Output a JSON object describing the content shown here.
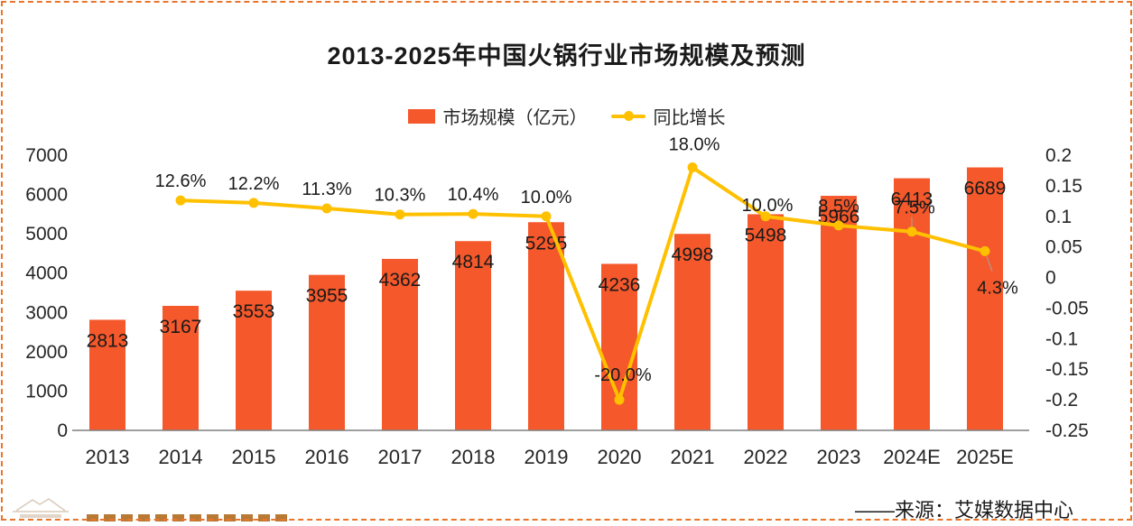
{
  "title": "2013-2025年中国火锅行业市场规模及预测",
  "legend": {
    "items": [
      {
        "label": "市场规模（亿元）",
        "marker": "bar-swatch"
      },
      {
        "label": "同比增长",
        "marker": "line-marker"
      }
    ]
  },
  "source": "——来源：艾媒数据中心",
  "colors": {
    "bar": "#F4582B",
    "line": "#FFC000",
    "text": "#262626",
    "axis": "#7F7F7F",
    "leader": "#A6A6A6",
    "border": "#E8752B"
  },
  "chart_data": {
    "type": "bar",
    "title": "2013-2025年中国火锅行业市场规模及预测",
    "categories": [
      "2013",
      "2014",
      "2015",
      "2016",
      "2017",
      "2018",
      "2019",
      "2020",
      "2021",
      "2022",
      "2023",
      "2024E",
      "2025E"
    ],
    "series": [
      {
        "name": "市场规模（亿元）",
        "type": "bar",
        "axis": "left",
        "values": [
          2813,
          3167,
          3553,
          3955,
          4362,
          4814,
          5295,
          4236,
          4998,
          5498,
          5966,
          6413,
          6689
        ],
        "value_labels": [
          "2813",
          "3167",
          "3553",
          "3955",
          "4362",
          "4814",
          "5295",
          "4236",
          "4998",
          "5498",
          "5966",
          "6413",
          "6689"
        ]
      },
      {
        "name": "同比增长",
        "type": "line",
        "axis": "right",
        "values": [
          null,
          0.126,
          0.122,
          0.113,
          0.103,
          0.104,
          0.1,
          -0.2,
          0.18,
          0.1,
          0.085,
          0.075,
          0.043
        ],
        "value_labels": [
          null,
          "12.6%",
          "12.2%",
          "11.3%",
          "10.3%",
          "10.4%",
          "10.0%",
          "-20.0%",
          "18.0%",
          "10.0%",
          "8.5%",
          "7.5%",
          "4.3%"
        ]
      }
    ],
    "left_axis": {
      "min": 0,
      "max": 7000,
      "tick_labels": [
        "7000",
        "6000",
        "5000",
        "4000",
        "3000",
        "2000",
        "1000",
        "0"
      ]
    },
    "right_axis": {
      "min": -0.25,
      "max": 0.2,
      "tick_labels": [
        "0.2",
        "0.15",
        "0.1",
        "0.05",
        "0",
        "-0.05",
        "-0.1",
        "-0.15",
        "-0.2",
        "-0.25"
      ]
    },
    "grid": false,
    "legend_position": "top"
  }
}
